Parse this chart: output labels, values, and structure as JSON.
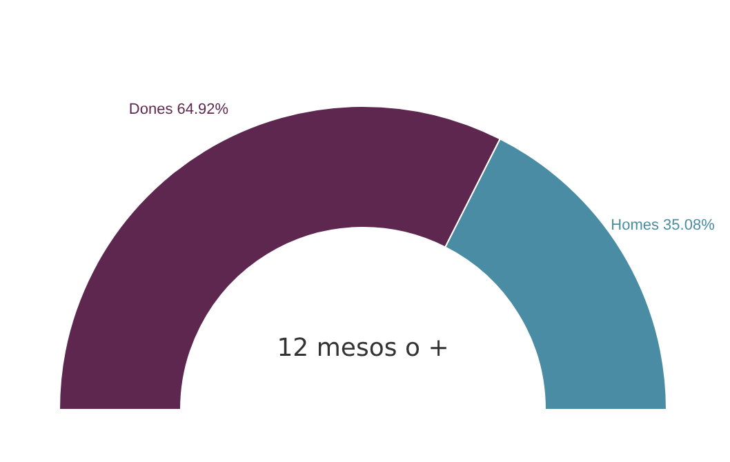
{
  "chart_data": {
    "type": "donut",
    "categories": [
      "Dones",
      "Homes"
    ],
    "values": [
      64.92,
      35.08
    ],
    "value_labels": [
      "64.92%",
      "35.08%"
    ],
    "colors": [
      "#5e2750",
      "#4a8ca3"
    ],
    "annotations": [
      "12 mesos o +"
    ]
  }
}
